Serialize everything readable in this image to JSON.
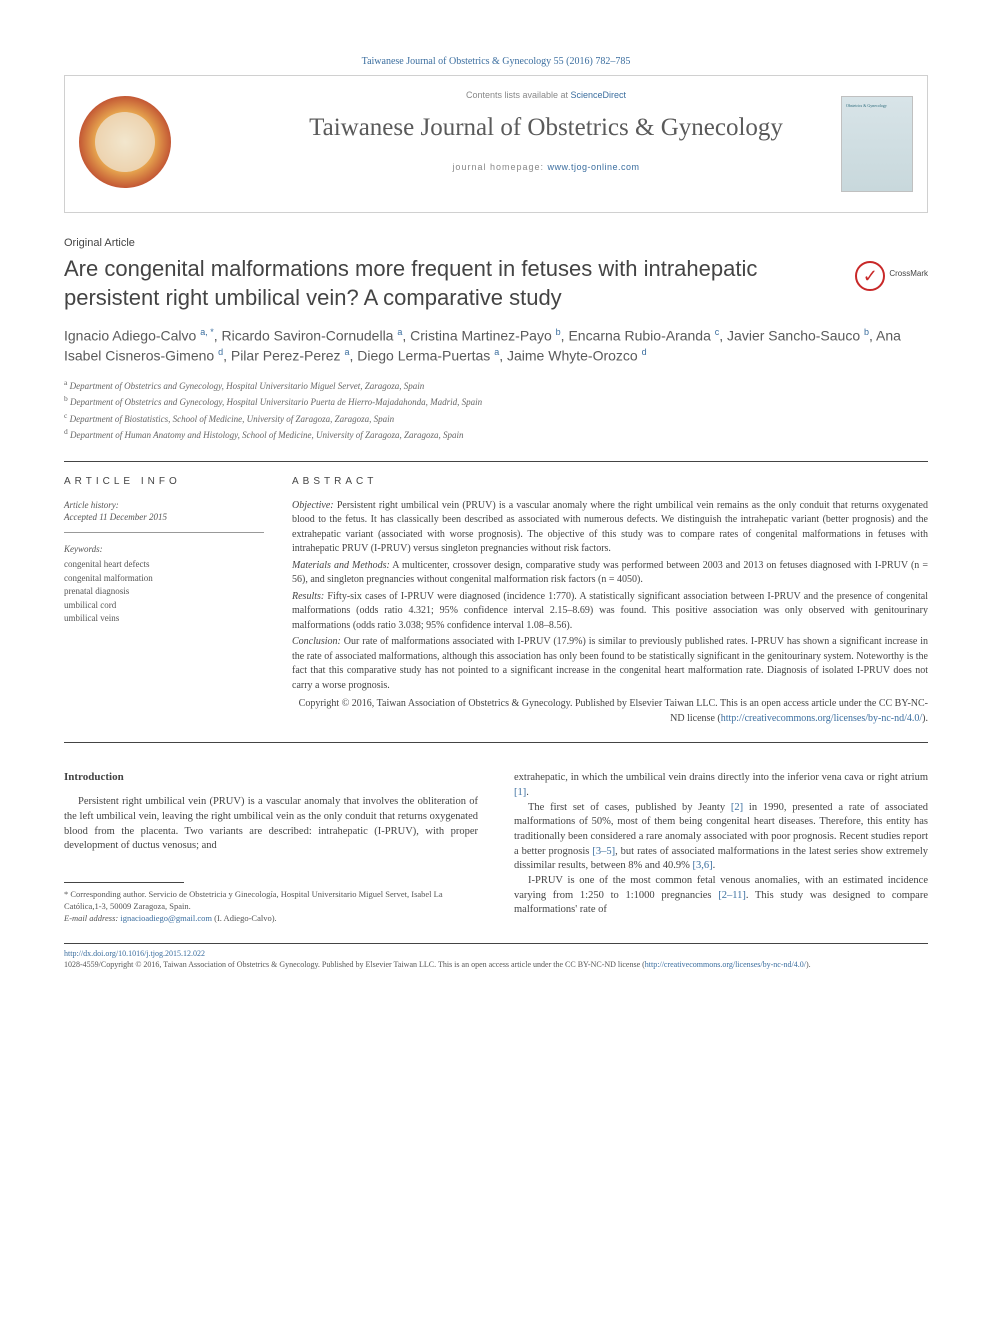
{
  "header": {
    "citation": "Taiwanese Journal of Obstetrics & Gynecology 55 (2016) 782–785",
    "contents_text": "Contents lists available at ",
    "contents_link": "ScienceDirect",
    "journal_name": "Taiwanese Journal of Obstetrics & Gynecology",
    "homepage_label": "journal homepage: ",
    "homepage_url": "www.tjog-online.com",
    "cover_text": "Obstetrics & Gynecology"
  },
  "article": {
    "type": "Original Article",
    "title": "Are congenital malformations more frequent in fetuses with intrahepatic persistent right umbilical vein? A comparative study",
    "crossmark_label": "CrossMark",
    "authors_html": "Ignacio Adiego-Calvo <sup>a, *</sup>, Ricardo Saviron-Cornudella <sup>a</sup>, Cristina Martinez-Payo <sup>b</sup>, Encarna Rubio-Aranda <sup>c</sup>, Javier Sancho-Sauco <sup>b</sup>, Ana Isabel Cisneros-Gimeno <sup>d</sup>, Pilar Perez-Perez <sup>a</sup>, Diego Lerma-Puertas <sup>a</sup>, Jaime Whyte-Orozco <sup>d</sup>",
    "affiliations": [
      "a Department of Obstetrics and Gynecology, Hospital Universitario Miguel Servet, Zaragoza, Spain",
      "b Department of Obstetrics and Gynecology, Hospital Universitario Puerta de Hierro-Majadahonda, Madrid, Spain",
      "c Department of Biostatistics, School of Medicine, University of Zaragoza, Zaragoza, Spain",
      "d Department of Human Anatomy and Histology, School of Medicine, University of Zaragoza, Zaragoza, Spain"
    ]
  },
  "info": {
    "section_label": "ARTICLE INFO",
    "history_label": "Article history:",
    "history": "Accepted 11 December 2015",
    "keywords_label": "Keywords:",
    "keywords": [
      "congenital heart defects",
      "congenital malformation",
      "prenatal diagnosis",
      "umbilical cord",
      "umbilical veins"
    ]
  },
  "abstract": {
    "section_label": "ABSTRACT",
    "objective_label": "Objective:",
    "objective": " Persistent right umbilical vein (PRUV) is a vascular anomaly where the right umbilical vein remains as the only conduit that returns oxygenated blood to the fetus. It has classically been described as associated with numerous defects. We distinguish the intrahepatic variant (better prognosis) and the extrahepatic variant (associated with worse prognosis). The objective of this study was to compare rates of congenital malformations in fetuses with intrahepatic PRUV (I-PRUV) versus singleton pregnancies without risk factors.",
    "methods_label": "Materials and Methods:",
    "methods": " A multicenter, crossover design, comparative study was performed between 2003 and 2013 on fetuses diagnosed with I-PRUV (n = 56), and singleton pregnancies without congenital malformation risk factors (n = 4050).",
    "results_label": "Results:",
    "results": " Fifty-six cases of I-PRUV were diagnosed (incidence 1:770). A statistically significant association between I-PRUV and the presence of congenital malformations (odds ratio 4.321; 95% confidence interval 2.15–8.69) was found. This positive association was only observed with genitourinary malformations (odds ratio 3.038; 95% confidence interval 1.08–8.56).",
    "conclusion_label": "Conclusion:",
    "conclusion": " Our rate of malformations associated with I-PRUV (17.9%) is similar to previously published rates. I-PRUV has shown a significant increase in the rate of associated malformations, although this association has only been found to be statistically significant in the genitourinary system. Noteworthy is the fact that this comparative study has not pointed to a significant increase in the congenital heart malformation rate. Diagnosis of isolated I-PRUV does not carry a worse prognosis.",
    "copyright": "Copyright © 2016, Taiwan Association of Obstetrics & Gynecology. Published by Elsevier Taiwan LLC. This is an open access article under the CC BY-NC-ND license (",
    "copyright_link": "http://creativecommons.org/licenses/by-nc-nd/4.0/",
    "copyright_close": ")."
  },
  "body": {
    "intro_heading": "Introduction",
    "intro_p1": "Persistent right umbilical vein (PRUV) is a vascular anomaly that involves the obliteration of the left umbilical vein, leaving the right umbilical vein as the only conduit that returns oxygenated blood from the placenta. Two variants are described: intrahepatic (I-PRUV), with proper development of ductus venosus; and",
    "col2_p1_a": "extrahepatic, in which the umbilical vein drains directly into the inferior vena cava or right atrium ",
    "col2_p1_ref1": "[1]",
    "col2_p1_b": ".",
    "col2_p2_a": "The first set of cases, published by Jeanty ",
    "col2_p2_ref1": "[2]",
    "col2_p2_b": " in 1990, presented a rate of associated malformations of 50%, most of them being congenital heart diseases. Therefore, this entity has traditionally been considered a rare anomaly associated with poor prognosis. Recent studies report a better prognosis ",
    "col2_p2_ref2": "[3–5]",
    "col2_p2_c": ", but rates of associated malformations in the latest series show extremely dissimilar results, between 8% and 40.9% ",
    "col2_p2_ref3": "[3,6]",
    "col2_p2_d": ".",
    "col2_p3_a": "I-PRUV is one of the most common fetal venous anomalies, with an estimated incidence varying from 1:250 to 1:1000 pregnancies ",
    "col2_p3_ref1": "[2–11]",
    "col2_p3_b": ". This study was designed to compare malformations' rate of"
  },
  "footnote": {
    "corr": "* Corresponding author. Servicio de Obstetricia y Ginecología, Hospital Universitario Miguel Servet, Isabel La Católica,1-3, 50009 Zaragoza, Spain.",
    "email_label": "E-mail address:",
    "email": "ignacioadiego@gmail.com",
    "email_name": " (I. Adiego-Calvo)."
  },
  "footer": {
    "doi": "http://dx.doi.org/10.1016/j.tjog.2015.12.022",
    "issn_line": "1028-4559/Copyright © 2016, Taiwan Association of Obstetrics & Gynecology. Published by Elsevier Taiwan LLC. This is an open access article under the CC BY-NC-ND license (",
    "license_link": "http://creativecommons.org/licenses/by-nc-nd/4.0/",
    "close": ")."
  },
  "colors": {
    "link": "#3b6e9f",
    "text": "#444444",
    "border": "#444444"
  }
}
